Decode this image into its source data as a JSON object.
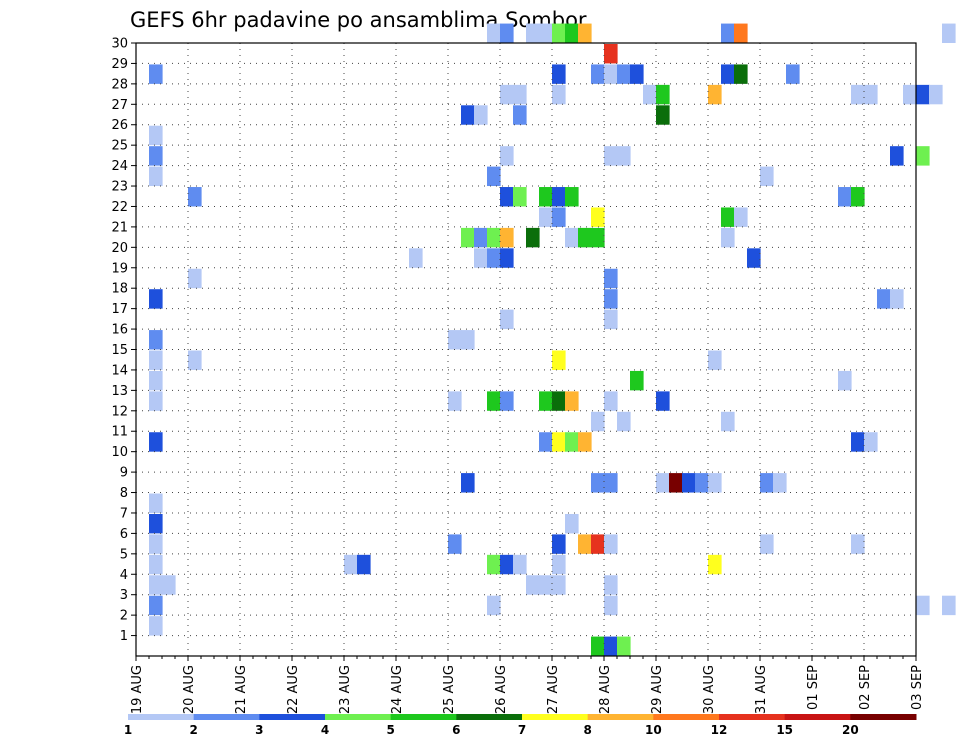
{
  "chart_data": {
    "type": "heatmap",
    "title": "GEFS 6hr padavine po ansamblima Sombor",
    "xlabel": "",
    "ylabel": "",
    "y_ticks": [
      "1",
      "2",
      "3",
      "4",
      "5",
      "6",
      "7",
      "8",
      "9",
      "10",
      "11",
      "12",
      "13",
      "14",
      "15",
      "16",
      "17",
      "18",
      "19",
      "20",
      "21",
      "22",
      "23",
      "24",
      "25",
      "26",
      "27",
      "28",
      "29",
      "30"
    ],
    "x_ticks": [
      "19 AUG",
      "20 AUG",
      "21 AUG",
      "22 AUG",
      "23 AUG",
      "24 AUG",
      "25 AUG",
      "26 AUG",
      "27 AUG",
      "28 AUG",
      "29 AUG",
      "30 AUG",
      "31 AUG",
      "01 SEP",
      "02 SEP",
      "03 SEP"
    ],
    "x_unit": "day",
    "colorbar": {
      "labels": [
        "1",
        "2",
        "3",
        "4",
        "5",
        "6",
        "7",
        "8",
        "10",
        "12",
        "15",
        "20"
      ],
      "colors": [
        "#b4c8f5",
        "#5f8cf0",
        "#1e50dc",
        "#6ef050",
        "#1ec81e",
        "#0a6e0a",
        "#ffff1e",
        "#ffb432",
        "#ff781e",
        "#e6321e",
        "#c81414",
        "#780000"
      ]
    },
    "grid": true,
    "cells": [
      {
        "m": 1,
        "d": 0.25,
        "c": 0
      },
      {
        "m": 2,
        "d": 0.25,
        "c": 1
      },
      {
        "m": 3,
        "d": 0.25,
        "c": 0
      },
      {
        "m": 3,
        "d": 0.5,
        "c": 0
      },
      {
        "m": 4,
        "d": 0.25,
        "c": 0
      },
      {
        "m": 5,
        "d": 0.25,
        "c": 0
      },
      {
        "m": 6,
        "d": 0.25,
        "c": 2
      },
      {
        "m": 7,
        "d": 0.25,
        "c": 0
      },
      {
        "m": 10,
        "d": 0.25,
        "c": 2
      },
      {
        "m": 12,
        "d": 0.25,
        "c": 0
      },
      {
        "m": 13,
        "d": 0.25,
        "c": 0
      },
      {
        "m": 14,
        "d": 0.25,
        "c": 0
      },
      {
        "m": 15,
        "d": 0.25,
        "c": 1
      },
      {
        "m": 17,
        "d": 0.25,
        "c": 2
      },
      {
        "m": 23,
        "d": 0.25,
        "c": 0
      },
      {
        "m": 24,
        "d": 0.25,
        "c": 1
      },
      {
        "m": 25,
        "d": 0.25,
        "c": 0
      },
      {
        "m": 28,
        "d": 0.25,
        "c": 1
      },
      {
        "m": 14,
        "d": 1.0,
        "c": 0
      },
      {
        "m": 18,
        "d": 1.0,
        "c": 0
      },
      {
        "m": 22,
        "d": 1.0,
        "c": 1
      },
      {
        "m": 4,
        "d": 4.0,
        "c": 0
      },
      {
        "m": 4,
        "d": 4.25,
        "c": 2
      },
      {
        "m": 19,
        "d": 5.25,
        "c": 0
      },
      {
        "m": 5,
        "d": 6.0,
        "c": 1
      },
      {
        "m": 12,
        "d": 6.0,
        "c": 0
      },
      {
        "m": 15,
        "d": 6.0,
        "c": 0
      },
      {
        "m": 15,
        "d": 6.25,
        "c": 0
      },
      {
        "m": 8,
        "d": 6.25,
        "c": 2
      },
      {
        "m": 26,
        "d": 6.25,
        "c": 2
      },
      {
        "m": 20,
        "d": 6.25,
        "c": 3
      },
      {
        "m": 26,
        "d": 6.5,
        "c": 0
      },
      {
        "m": 19,
        "d": 6.5,
        "c": 0
      },
      {
        "m": 20,
        "d": 6.5,
        "c": 1
      },
      {
        "m": 2,
        "d": 6.75,
        "c": 0
      },
      {
        "m": 4,
        "d": 6.75,
        "c": 3
      },
      {
        "m": 12,
        "d": 6.75,
        "c": 4
      },
      {
        "m": 19,
        "d": 6.75,
        "c": 1
      },
      {
        "m": 20,
        "d": 6.75,
        "c": 3
      },
      {
        "m": 23,
        "d": 6.75,
        "c": 1
      },
      {
        "m": 30,
        "d": 6.75,
        "c": 0
      },
      {
        "m": 4,
        "d": 7.0,
        "c": 2
      },
      {
        "m": 12,
        "d": 7.0,
        "c": 1
      },
      {
        "m": 16,
        "d": 7.0,
        "c": 0
      },
      {
        "m": 19,
        "d": 7.0,
        "c": 2
      },
      {
        "m": 20,
        "d": 7.0,
        "c": 7
      },
      {
        "m": 22,
        "d": 7.0,
        "c": 2
      },
      {
        "m": 24,
        "d": 7.0,
        "c": 0
      },
      {
        "m": 27,
        "d": 7.0,
        "c": 0
      },
      {
        "m": 30,
        "d": 7.0,
        "c": 1
      },
      {
        "m": 4,
        "d": 7.25,
        "c": 0
      },
      {
        "m": 22,
        "d": 7.25,
        "c": 3
      },
      {
        "m": 26,
        "d": 7.25,
        "c": 1
      },
      {
        "m": 27,
        "d": 7.25,
        "c": 0
      },
      {
        "m": 3,
        "d": 7.5,
        "c": 0
      },
      {
        "m": 20,
        "d": 7.5,
        "c": 5
      },
      {
        "m": 30,
        "d": 7.5,
        "c": 0
      },
      {
        "m": 3,
        "d": 7.75,
        "c": 0
      },
      {
        "m": 10,
        "d": 7.75,
        "c": 1
      },
      {
        "m": 12,
        "d": 7.75,
        "c": 4
      },
      {
        "m": 21,
        "d": 7.75,
        "c": 0
      },
      {
        "m": 22,
        "d": 7.75,
        "c": 4
      },
      {
        "m": 30,
        "d": 7.75,
        "c": 0
      },
      {
        "m": 3,
        "d": 8.0,
        "c": 0
      },
      {
        "m": 4,
        "d": 8.0,
        "c": 0
      },
      {
        "m": 5,
        "d": 8.0,
        "c": 2
      },
      {
        "m": 10,
        "d": 8.0,
        "c": 6
      },
      {
        "m": 12,
        "d": 8.0,
        "c": 5
      },
      {
        "m": 14,
        "d": 8.0,
        "c": 6
      },
      {
        "m": 21,
        "d": 8.0,
        "c": 1
      },
      {
        "m": 22,
        "d": 8.0,
        "c": 2
      },
      {
        "m": 27,
        "d": 8.0,
        "c": 0
      },
      {
        "m": 28,
        "d": 8.0,
        "c": 2
      },
      {
        "m": 30,
        "d": 8.0,
        "c": 3
      },
      {
        "m": 6,
        "d": 8.25,
        "c": 0
      },
      {
        "m": 10,
        "d": 8.25,
        "c": 3
      },
      {
        "m": 12,
        "d": 8.25,
        "c": 7
      },
      {
        "m": 20,
        "d": 8.25,
        "c": 0
      },
      {
        "m": 22,
        "d": 8.25,
        "c": 4
      },
      {
        "m": 30,
        "d": 8.25,
        "c": 4
      },
      {
        "m": 5,
        "d": 8.5,
        "c": 7
      },
      {
        "m": 10,
        "d": 8.5,
        "c": 7
      },
      {
        "m": 20,
        "d": 8.5,
        "c": 4
      },
      {
        "m": 30,
        "d": 8.5,
        "c": 7
      },
      {
        "m": 5,
        "d": 8.75,
        "c": 9
      },
      {
        "m": 8,
        "d": 8.75,
        "c": 1
      },
      {
        "m": 11,
        "d": 8.75,
        "c": 0
      },
      {
        "m": 20,
        "d": 8.75,
        "c": 4
      },
      {
        "m": 21,
        "d": 8.75,
        "c": 6
      },
      {
        "m": 28,
        "d": 8.75,
        "c": 1
      },
      {
        "m": 0,
        "d": 8.75,
        "c": 4
      },
      {
        "m": 0,
        "d": 9.0,
        "c": 2
      },
      {
        "m": 0,
        "d": 9.25,
        "c": 3
      },
      {
        "m": 2,
        "d": 9.0,
        "c": 0
      },
      {
        "m": 3,
        "d": 9.0,
        "c": 0
      },
      {
        "m": 5,
        "d": 9.0,
        "c": 0
      },
      {
        "m": 8,
        "d": 9.0,
        "c": 1
      },
      {
        "m": 12,
        "d": 9.0,
        "c": 0
      },
      {
        "m": 16,
        "d": 9.0,
        "c": 0
      },
      {
        "m": 17,
        "d": 9.0,
        "c": 1
      },
      {
        "m": 18,
        "d": 9.0,
        "c": 1
      },
      {
        "m": 24,
        "d": 9.0,
        "c": 0
      },
      {
        "m": 28,
        "d": 9.0,
        "c": 0
      },
      {
        "m": 29,
        "d": 9.0,
        "c": 9
      },
      {
        "m": 11,
        "d": 9.25,
        "c": 0
      },
      {
        "m": 24,
        "d": 9.25,
        "c": 0
      },
      {
        "m": 28,
        "d": 9.25,
        "c": 1
      },
      {
        "m": 28,
        "d": 9.5,
        "c": 2
      },
      {
        "m": 13,
        "d": 9.5,
        "c": 4
      },
      {
        "m": 27,
        "d": 9.75,
        "c": 0
      },
      {
        "m": 8,
        "d": 10.0,
        "c": 0
      },
      {
        "m": 12,
        "d": 10.0,
        "c": 2
      },
      {
        "m": 26,
        "d": 10.0,
        "c": 5
      },
      {
        "m": 27,
        "d": 10.0,
        "c": 4
      },
      {
        "m": 8,
        "d": 10.25,
        "c": 11
      },
      {
        "m": 8,
        "d": 10.5,
        "c": 2
      },
      {
        "m": 8,
        "d": 10.75,
        "c": 1
      },
      {
        "m": 8,
        "d": 11.0,
        "c": 0
      },
      {
        "m": 4,
        "d": 11.0,
        "c": 6
      },
      {
        "m": 27,
        "d": 11.0,
        "c": 7
      },
      {
        "m": 11,
        "d": 11.25,
        "c": 0
      },
      {
        "m": 14,
        "d": 11.0,
        "c": 0
      },
      {
        "m": 21,
        "d": 11.25,
        "c": 4
      },
      {
        "m": 21,
        "d": 11.5,
        "c": 0
      },
      {
        "m": 20,
        "d": 11.25,
        "c": 0
      },
      {
        "m": 30,
        "d": 11.25,
        "c": 1
      },
      {
        "m": 30,
        "d": 11.5,
        "c": 8
      },
      {
        "m": 28,
        "d": 11.25,
        "c": 2
      },
      {
        "m": 28,
        "d": 11.5,
        "c": 5
      },
      {
        "m": 19,
        "d": 11.75,
        "c": 2
      },
      {
        "m": 5,
        "d": 12.0,
        "c": 0
      },
      {
        "m": 8,
        "d": 12.0,
        "c": 1
      },
      {
        "m": 8,
        "d": 12.25,
        "c": 0
      },
      {
        "m": 23,
        "d": 12.0,
        "c": 0
      },
      {
        "m": 28,
        "d": 12.5,
        "c": 1
      },
      {
        "m": 22,
        "d": 13.5,
        "c": 1
      },
      {
        "m": 22,
        "d": 13.75,
        "c": 4
      },
      {
        "m": 13,
        "d": 13.5,
        "c": 0
      },
      {
        "m": 10,
        "d": 13.75,
        "c": 2
      },
      {
        "m": 10,
        "d": 14.0,
        "c": 0
      },
      {
        "m": 5,
        "d": 13.75,
        "c": 0
      },
      {
        "m": 27,
        "d": 13.75,
        "c": 0
      },
      {
        "m": 27,
        "d": 14.0,
        "c": 0
      },
      {
        "m": 24,
        "d": 14.5,
        "c": 2
      },
      {
        "m": 17,
        "d": 14.25,
        "c": 1
      },
      {
        "m": 17,
        "d": 14.5,
        "c": 0
      },
      {
        "m": 27,
        "d": 14.75,
        "c": 0
      },
      {
        "m": 27,
        "d": 15.0,
        "c": 2
      },
      {
        "m": 27,
        "d": 15.25,
        "c": 0
      },
      {
        "m": 24,
        "d": 15.0,
        "c": 3
      },
      {
        "m": 2,
        "d": 15.0,
        "c": 0
      },
      {
        "m": 2,
        "d": 15.5,
        "c": 0
      },
      {
        "m": 30,
        "d": 15.5,
        "c": 0
      }
    ]
  }
}
